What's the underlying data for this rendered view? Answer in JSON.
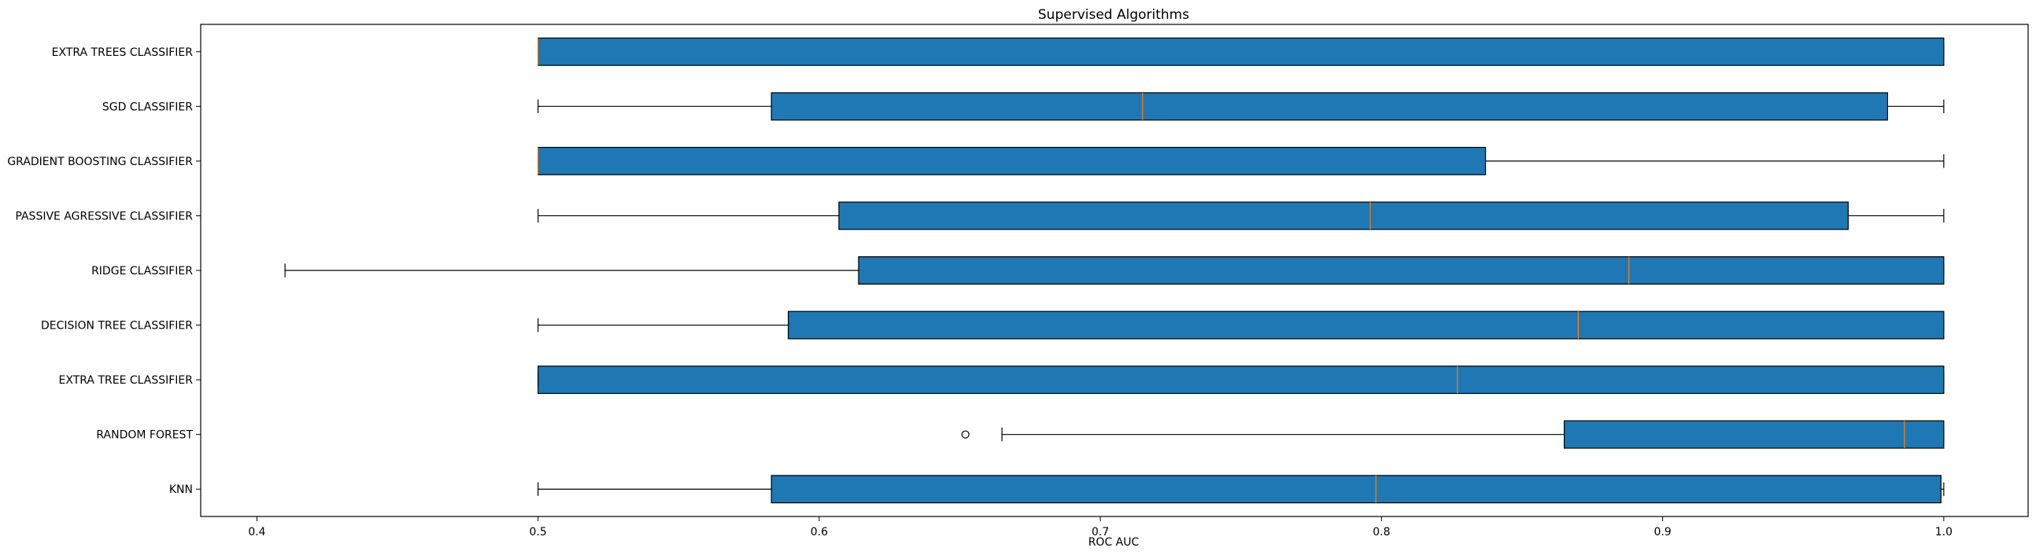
{
  "chart_data": {
    "type": "boxplot",
    "orientation": "horizontal",
    "title": "Supervised Algorithms",
    "xlabel": "ROC AUC",
    "ylabel": "",
    "xlim": [
      0.38,
      1.03
    ],
    "xticks": [
      0.4,
      0.5,
      0.6,
      0.7,
      0.8,
      0.9,
      1.0
    ],
    "xtick_labels": [
      "0.4",
      "0.5",
      "0.6",
      "0.7",
      "0.8",
      "0.9",
      "1.0"
    ],
    "grid": false,
    "box_color": "#1f77b4",
    "median_color": "#ff7f0e",
    "categories": [
      "KNN",
      "RANDOM FOREST",
      "EXTRA TREE CLASSIFIER",
      "DECISION TREE CLASSIFIER",
      "RIDGE CLASSIFIER",
      "PASSIVE AGRESSIVE CLASSIFIER",
      "GRADIENT BOOSTING CLASSIFIER",
      "SGD CLASSIFIER",
      "EXTRA TREES CLASSIFIER"
    ],
    "boxes": [
      {
        "whisker_low": 0.5,
        "q1": 0.583,
        "median": 0.798,
        "q3": 0.999,
        "whisker_high": 1.0,
        "outliers": []
      },
      {
        "whisker_low": 0.665,
        "q1": 0.865,
        "median": 0.986,
        "q3": 1.0,
        "whisker_high": 1.0,
        "outliers": [
          0.652
        ]
      },
      {
        "whisker_low": 0.5,
        "q1": 0.5,
        "median": 0.827,
        "q3": 1.0,
        "whisker_high": 1.0,
        "outliers": []
      },
      {
        "whisker_low": 0.5,
        "q1": 0.589,
        "median": 0.87,
        "q3": 1.0,
        "whisker_high": 1.0,
        "outliers": []
      },
      {
        "whisker_low": 0.41,
        "q1": 0.614,
        "median": 0.888,
        "q3": 1.0,
        "whisker_high": 1.0,
        "outliers": []
      },
      {
        "whisker_low": 0.5,
        "q1": 0.607,
        "median": 0.796,
        "q3": 0.966,
        "whisker_high": 1.0,
        "outliers": []
      },
      {
        "whisker_low": 0.5,
        "q1": 0.5,
        "median": 0.5,
        "q3": 0.837,
        "whisker_high": 1.0,
        "outliers": []
      },
      {
        "whisker_low": 0.5,
        "q1": 0.583,
        "median": 0.715,
        "q3": 0.98,
        "whisker_high": 1.0,
        "outliers": []
      },
      {
        "whisker_low": 0.5,
        "q1": 0.5,
        "median": 0.5,
        "q3": 1.0,
        "whisker_high": 1.0,
        "outliers": []
      }
    ]
  }
}
